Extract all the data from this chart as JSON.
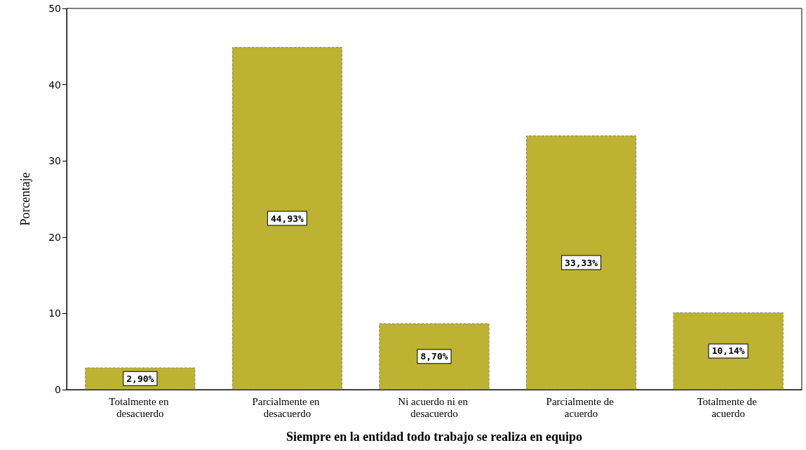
{
  "chart_data": {
    "type": "bar",
    "xlabel": "Siempre en la entidad todo trabajo se realiza en equipo",
    "ylabel": "Porcentaje",
    "categories": [
      "Totalmente en desacuerdo",
      "Parcialmente en desacuerdo",
      "Ni acuerdo ni en desacuerdo",
      "Parcialmente de acuerdo",
      "Totalmente de acuerdo"
    ],
    "values": [
      2.9,
      44.93,
      8.7,
      33.33,
      10.14
    ],
    "value_labels": [
      "2,90%",
      "44,93%",
      "8,70%",
      "33,33%",
      "10,14%"
    ],
    "color": "#bdb232",
    "ylim": [
      0,
      50
    ],
    "yticks": [
      0,
      10,
      20,
      30,
      40,
      50
    ],
    "grid": false
  }
}
